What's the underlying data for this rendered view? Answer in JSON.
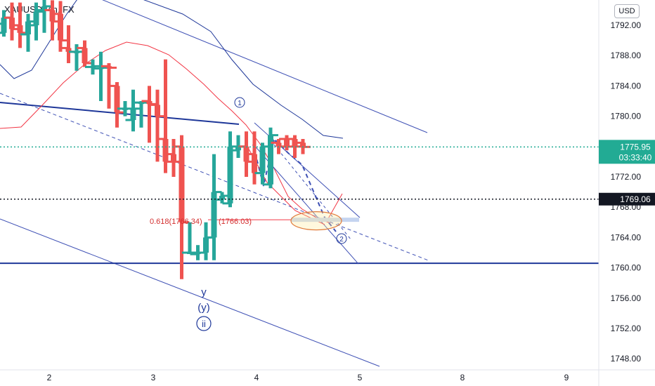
{
  "symbol_title": "XAUUSD, 4h, FX",
  "currency_label": "USD",
  "colors": {
    "bull": "#26a69a",
    "bear": "#ef5350",
    "blue_line": "#1e3799",
    "channel": "#3f51b5",
    "ma_red": "#f23645",
    "current_price": "#22ab94",
    "last_price_line": "#131722",
    "fib_text": "#d32f2f"
  },
  "chart_data": {
    "type": "candlestick",
    "symbol": "XAUUSD",
    "timeframe": "4h",
    "price_axis": {
      "range": [
        1746.5,
        1796.5
      ],
      "ticks": [
        "1792.00",
        "1788.00",
        "1784.00",
        "1780.00",
        "1776.00",
        "1772.00",
        "1768.00",
        "1764.00",
        "1760.00",
        "1756.00",
        "1752.00",
        "1748.00"
      ]
    },
    "time_axis": {
      "ticks": [
        "2",
        "3",
        "4",
        "5",
        "8",
        "9"
      ]
    },
    "current_price": {
      "value": 1775.95,
      "label": "1775.95",
      "countdown": "03:33:40"
    },
    "marked_price": {
      "value": 1769.06,
      "label": "1769.06"
    },
    "support_level": 1760.6,
    "candles": [
      {
        "o": 1792.2,
        "h": 1794.5,
        "l": 1791.5,
        "c": 1792.2
      },
      {
        "o": 1791.0,
        "h": 1794.0,
        "l": 1790.5,
        "c": 1793.0
      },
      {
        "o": 1793.0,
        "h": 1795.0,
        "l": 1790.0,
        "c": 1791.5
      },
      {
        "o": 1792.0,
        "h": 1795.0,
        "l": 1789.0,
        "c": 1791.0
      },
      {
        "o": 1790.8,
        "h": 1793.5,
        "l": 1788.5,
        "c": 1792.5
      },
      {
        "o": 1792.0,
        "h": 1795.0,
        "l": 1790.0,
        "c": 1793.8
      },
      {
        "o": 1794.0,
        "h": 1795.5,
        "l": 1791.0,
        "c": 1794.5
      },
      {
        "o": 1794.0,
        "h": 1795.3,
        "l": 1790.0,
        "c": 1792.5
      },
      {
        "o": 1793.5,
        "h": 1795.2,
        "l": 1788.5,
        "c": 1790.0
      },
      {
        "o": 1789.0,
        "h": 1792.0,
        "l": 1787.0,
        "c": 1788.5
      },
      {
        "o": 1788.5,
        "h": 1789.5,
        "l": 1786.0,
        "c": 1788.5
      },
      {
        "o": 1789.0,
        "h": 1790.0,
        "l": 1786.5,
        "c": 1787.0
      },
      {
        "o": 1786.5,
        "h": 1787.5,
        "l": 1785.5,
        "c": 1786.6
      },
      {
        "o": 1786.3,
        "h": 1788.5,
        "l": 1782.0,
        "c": 1786.4
      },
      {
        "o": 1786.6,
        "h": 1787.0,
        "l": 1781.0,
        "c": 1786.4
      },
      {
        "o": 1784.0,
        "h": 1784.5,
        "l": 1778.5,
        "c": 1780.5
      },
      {
        "o": 1781.0,
        "h": 1782.0,
        "l": 1780.0,
        "c": 1781.0
      },
      {
        "o": 1779.5,
        "h": 1783.5,
        "l": 1778.0,
        "c": 1781.0
      },
      {
        "o": 1781.8,
        "h": 1782.0,
        "l": 1778.5,
        "c": 1781.8
      },
      {
        "o": 1782.0,
        "h": 1784.0,
        "l": 1776.5,
        "c": 1781.6
      },
      {
        "o": 1781.5,
        "h": 1783.5,
        "l": 1774.0,
        "c": 1780.0
      },
      {
        "o": 1777.0,
        "h": 1787.5,
        "l": 1772.5,
        "c": 1774.0
      },
      {
        "o": 1775.0,
        "h": 1777.0,
        "l": 1772.0,
        "c": 1774.0
      },
      {
        "o": 1776.0,
        "h": 1777.5,
        "l": 1758.5,
        "c": 1766.0
      },
      {
        "o": 1762.0,
        "h": 1766.0,
        "l": 1762.0,
        "c": 1762.0
      },
      {
        "o": 1761.8,
        "h": 1763.0,
        "l": 1761.0,
        "c": 1762.0
      },
      {
        "o": 1762.0,
        "h": 1766.0,
        "l": 1761.0,
        "c": 1764.0
      },
      {
        "o": 1764.0,
        "h": 1775.0,
        "l": 1761.0,
        "c": 1770.0
      },
      {
        "o": 1769.0,
        "h": 1770.0,
        "l": 1768.5,
        "c": 1769.5
      },
      {
        "o": 1768.5,
        "h": 1778.0,
        "l": 1768.0,
        "c": 1776.0
      },
      {
        "o": 1775.5,
        "h": 1777.5,
        "l": 1774.5,
        "c": 1776.0
      },
      {
        "o": 1776.0,
        "h": 1778.0,
        "l": 1772.0,
        "c": 1774.0
      },
      {
        "o": 1775.0,
        "h": 1778.0,
        "l": 1771.0,
        "c": 1772.5
      },
      {
        "o": 1772.5,
        "h": 1776.5,
        "l": 1771.0,
        "c": 1776.0
      },
      {
        "o": 1771.0,
        "h": 1778.5,
        "l": 1770.5,
        "c": 1777.5
      },
      {
        "o": 1776.5,
        "h": 1777.0,
        "l": 1775.0,
        "c": 1776.0
      },
      {
        "o": 1777.0,
        "h": 1777.5,
        "l": 1775.5,
        "c": 1776.0
      },
      {
        "o": 1777.0,
        "h": 1777.5,
        "l": 1774.5,
        "c": 1776.0
      },
      {
        "o": 1776.5,
        "h": 1777.0,
        "l": 1775.0,
        "c": 1775.95
      }
    ],
    "annotations": {
      "wave_labels": [
        "y",
        "(y)",
        "ii"
      ],
      "circled_labels": [
        "1",
        "2"
      ],
      "fib_label": "0.618(1766.34)",
      "fib_label_overlap": "(1766.03)"
    }
  }
}
